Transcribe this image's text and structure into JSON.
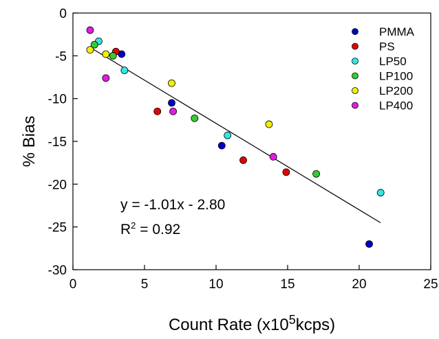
{
  "chart_data": {
    "type": "scatter",
    "xlabel": "Count Rate (x10",
    "xlabel_sup": "5",
    "xlabel_rest": "kcps)",
    "ylabel": "% Bias",
    "xlim": [
      0,
      25
    ],
    "ylim": [
      -30,
      0
    ],
    "x_ticks": [
      0,
      5,
      10,
      15,
      20,
      25
    ],
    "y_ticks": [
      0,
      -5,
      -10,
      -15,
      -20,
      -25,
      -30
    ],
    "legend_position": "top-right",
    "series": [
      {
        "name": "PMMA",
        "color": "#0000cc",
        "points": [
          [
            3.4,
            -4.8
          ],
          [
            6.9,
            -10.5
          ],
          [
            10.4,
            -15.5
          ],
          [
            20.7,
            -27.0
          ]
        ]
      },
      {
        "name": "PS",
        "color": "#e60000",
        "points": [
          [
            3.0,
            -4.5
          ],
          [
            5.9,
            -11.5
          ],
          [
            11.9,
            -17.2
          ],
          [
            14.9,
            -18.6
          ]
        ]
      },
      {
        "name": "LP50",
        "color": "#33e6e6",
        "points": [
          [
            1.8,
            -3.3
          ],
          [
            3.6,
            -6.7
          ],
          [
            10.8,
            -14.3
          ],
          [
            21.5,
            -21.0
          ]
        ]
      },
      {
        "name": "LP100",
        "color": "#33cc33",
        "points": [
          [
            1.5,
            -3.7
          ],
          [
            2.8,
            -5.0
          ],
          [
            8.5,
            -12.3
          ],
          [
            17.0,
            -18.8
          ]
        ]
      },
      {
        "name": "LP200",
        "color": "#f0f000",
        "points": [
          [
            1.2,
            -4.3
          ],
          [
            2.3,
            -4.8
          ],
          [
            6.9,
            -8.2
          ],
          [
            13.7,
            -13.0
          ]
        ]
      },
      {
        "name": "LP400",
        "color": "#e619e6",
        "points": [
          [
            1.2,
            -2.0
          ],
          [
            2.3,
            -7.6
          ],
          [
            7.0,
            -11.5
          ],
          [
            14.0,
            -16.8
          ]
        ]
      }
    ],
    "trendline": {
      "slope": -1.01,
      "intercept": -2.8,
      "x_range": [
        1.2,
        21.5
      ]
    },
    "annotations": {
      "equation": "y = -1.01x - 2.80",
      "r2_prefix": "R",
      "r2_sup": "2",
      "r2_value": " = 0.92"
    }
  }
}
